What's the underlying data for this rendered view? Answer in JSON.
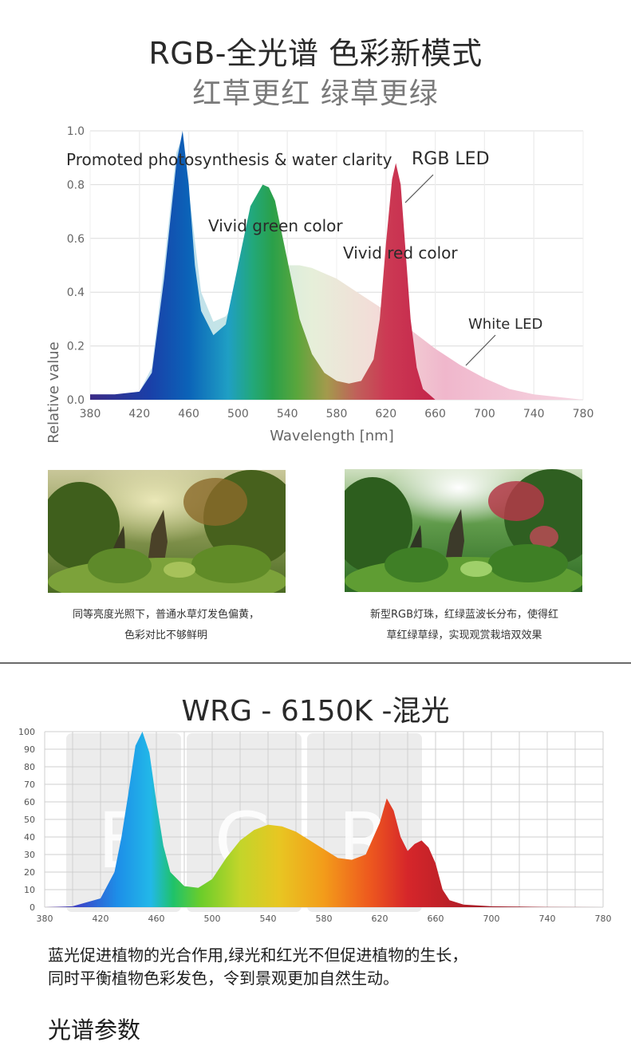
{
  "header": {
    "title": "RGB-全光谱 色彩新模式",
    "subtitle": "红草更红 绿草更绿"
  },
  "chart_data": [
    {
      "type": "area",
      "xlabel": "Wavelength [nm]",
      "ylabel": "Relative value",
      "xlim": [
        380,
        780
      ],
      "ylim": [
        0,
        1.0
      ],
      "x_ticks": [
        "380",
        "420",
        "460",
        "500",
        "540",
        "580",
        "620",
        "660",
        "700",
        "740",
        "780"
      ],
      "y_ticks": [
        "0.0",
        "0.2",
        "0.4",
        "0.6",
        "0.8",
        "1.0"
      ],
      "grid": true,
      "series": [
        {
          "name": "RGB LED",
          "x": [
            380,
            400,
            420,
            430,
            440,
            450,
            455,
            460,
            465,
            470,
            480,
            490,
            500,
            510,
            520,
            525,
            530,
            540,
            550,
            560,
            570,
            580,
            590,
            600,
            610,
            615,
            620,
            625,
            628,
            632,
            640,
            645,
            650,
            660,
            680
          ],
          "values": [
            0.02,
            0.02,
            0.03,
            0.1,
            0.45,
            0.88,
            1.0,
            0.8,
            0.5,
            0.33,
            0.24,
            0.28,
            0.5,
            0.72,
            0.8,
            0.79,
            0.74,
            0.52,
            0.3,
            0.17,
            0.1,
            0.07,
            0.06,
            0.07,
            0.15,
            0.3,
            0.58,
            0.82,
            0.88,
            0.8,
            0.3,
            0.12,
            0.04,
            0.0,
            0.0
          ]
        },
        {
          "name": "White LED",
          "x": [
            380,
            410,
            420,
            430,
            440,
            450,
            455,
            460,
            470,
            480,
            490,
            500,
            510,
            520,
            530,
            540,
            550,
            560,
            570,
            580,
            600,
            620,
            640,
            660,
            680,
            700,
            720,
            740,
            760,
            780
          ],
          "values": [
            0.0,
            0.01,
            0.03,
            0.12,
            0.5,
            0.92,
            0.98,
            0.78,
            0.4,
            0.29,
            0.31,
            0.38,
            0.44,
            0.48,
            0.5,
            0.5,
            0.5,
            0.49,
            0.47,
            0.45,
            0.39,
            0.33,
            0.26,
            0.19,
            0.13,
            0.08,
            0.04,
            0.02,
            0.01,
            0.0
          ]
        }
      ],
      "annotations": [
        "Promoted photosynthesis & water clarity",
        "Vivid green color",
        "Vivid red color",
        "RGB LED",
        "White LED"
      ]
    },
    {
      "type": "area",
      "title": "WRG - 6150K -混光",
      "xlim": [
        380,
        780
      ],
      "ylim": [
        0,
        100
      ],
      "x_ticks": [
        "380",
        "420",
        "460",
        "500",
        "540",
        "580",
        "620",
        "660",
        "700",
        "740",
        "780"
      ],
      "y_ticks": [
        "0",
        "10",
        "20",
        "30",
        "40",
        "50",
        "60",
        "70",
        "80",
        "90",
        "100"
      ],
      "grid": true,
      "band_labels": [
        "B",
        "G",
        "R"
      ],
      "series": [
        {
          "name": "",
          "x": [
            380,
            400,
            420,
            430,
            435,
            440,
            445,
            450,
            455,
            460,
            465,
            470,
            480,
            490,
            500,
            510,
            520,
            530,
            540,
            550,
            560,
            570,
            580,
            590,
            600,
            610,
            620,
            625,
            630,
            635,
            640,
            645,
            650,
            655,
            660,
            665,
            670,
            680,
            700,
            720,
            740,
            780
          ],
          "values": [
            0,
            0.5,
            5,
            20,
            40,
            65,
            92,
            100,
            88,
            60,
            35,
            20,
            12,
            11,
            16,
            28,
            38,
            44,
            47,
            46,
            43,
            38,
            33,
            28,
            27,
            30,
            48,
            62,
            55,
            40,
            32,
            36,
            38,
            34,
            25,
            10,
            4,
            1.5,
            0.5,
            0.3,
            0.1,
            0
          ]
        }
      ]
    }
  ],
  "photos": {
    "left_caption_line1": "同等亮度光照下，普通水草灯发色偏黄，",
    "left_caption_line2": "色彩对比不够鲜明",
    "right_caption_line1": "新型RGB灯珠，红绿蓝波长分布，使得红",
    "right_caption_line2": "草红绿草绿，实现观赏栽培双效果"
  },
  "description": {
    "line1": "蓝光促进植物的光合作用,绿光和红光不但促进植物的生长，",
    "line2": "同时平衡植物色彩发色，令到景观更加自然生动。"
  },
  "section": {
    "title": "光谱参数"
  },
  "colors": {
    "white_led_fill": "#f2b8d0",
    "white_led_blue": "#bfe3ee",
    "grid": "#d8d8d8",
    "divider": "#6a6a6a"
  }
}
